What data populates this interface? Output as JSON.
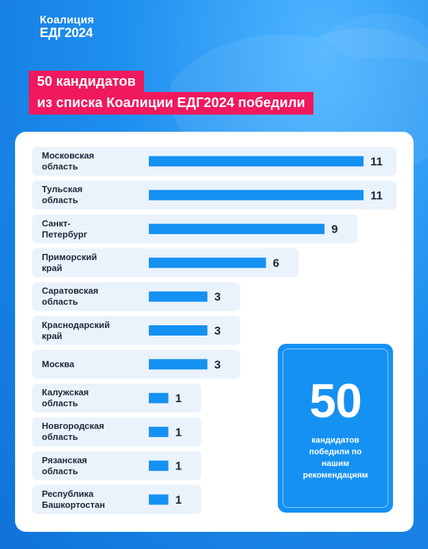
{
  "logo": {
    "line1": "Коалиция",
    "line2": "ЕДГ2024"
  },
  "headline": {
    "line1": "50 кандидатов",
    "line2": "из списка Коалиции ЕДГ2024 победили"
  },
  "colors": {
    "bar": "#1591f2",
    "row_bg": "#eaf2fb",
    "accent": "#f0195e",
    "background": "#1e8fef"
  },
  "chart_data": {
    "type": "bar",
    "orientation": "horizontal",
    "categories": [
      "Московская область",
      "Тульская область",
      "Санкт-Петербург",
      "Приморский край",
      "Саратовская область",
      "Краснодарский край",
      "Москва",
      "Калужская область",
      "Новгородская область",
      "Рязанская область",
      "Республика Башкортостан"
    ],
    "display_labels": [
      [
        "Московская",
        "область"
      ],
      [
        "Тульская",
        "область"
      ],
      [
        "Санкт-",
        "Петербург"
      ],
      [
        "Приморский",
        "край"
      ],
      [
        "Саратовская",
        "область"
      ],
      [
        "Краснодарский",
        "край"
      ],
      [
        "Москва"
      ],
      [
        "Калужская",
        "область"
      ],
      [
        "Новгородская",
        "область"
      ],
      [
        "Рязанская",
        "область"
      ],
      [
        "Республика",
        "Башкортостан"
      ]
    ],
    "values": [
      11,
      11,
      9,
      6,
      3,
      3,
      3,
      1,
      1,
      1,
      1
    ],
    "title": "",
    "xlabel": "",
    "ylabel": "",
    "xlim": [
      0,
      11
    ],
    "grid": false,
    "data_labels": true
  },
  "total": {
    "value": "50",
    "caption": [
      "кандидатов",
      "победили по",
      "нашим",
      "рекомендациям"
    ]
  }
}
